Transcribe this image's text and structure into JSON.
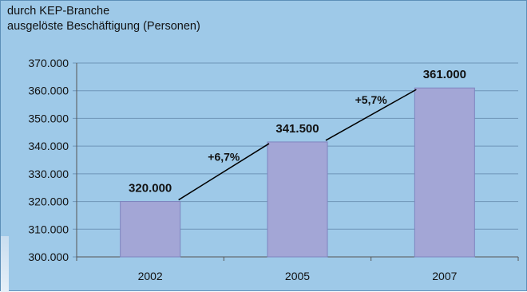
{
  "chart_data": {
    "type": "bar",
    "title_lines": [
      "durch KEP-Branche",
      "ausgelöste Beschäftigung (Personen)"
    ],
    "categories": [
      "2002",
      "2005",
      "2007"
    ],
    "values": [
      320000,
      341500,
      361000
    ],
    "value_labels": [
      "320.000",
      "341.500",
      "361.000"
    ],
    "growth_labels": [
      "+6,7%",
      "+5,7%"
    ],
    "ylim": [
      300000,
      370000
    ],
    "y_ticks": [
      300000,
      310000,
      320000,
      330000,
      340000,
      350000,
      360000,
      370000
    ],
    "y_tick_labels": [
      "300.000",
      "310.000",
      "320.000",
      "330.000",
      "340.000",
      "350.000",
      "360.000",
      "370.000"
    ],
    "grid": true,
    "legend": "none",
    "colors": {
      "background": "#9ec9e8",
      "bar_fill": "#a3a6d6",
      "bar_stroke": "#7f84bf",
      "grid": "#6f95b7",
      "text": "#111111"
    }
  }
}
